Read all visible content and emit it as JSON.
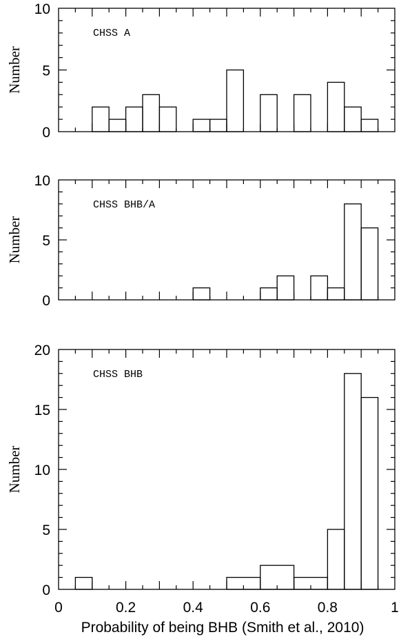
{
  "chart_data": [
    {
      "type": "bar",
      "label": "CHSS A",
      "ylabel": "Number",
      "xlim": [
        0,
        1
      ],
      "ylim": [
        0,
        10
      ],
      "yticks": [
        0,
        5,
        10
      ],
      "bin_width": 0.05,
      "bins_start": [
        0.1,
        0.15,
        0.2,
        0.25,
        0.3,
        0.4,
        0.45,
        0.5,
        0.6,
        0.7,
        0.8,
        0.85,
        0.9
      ],
      "values": [
        2,
        1,
        2,
        3,
        2,
        1,
        1,
        5,
        3,
        3,
        4,
        2,
        1
      ]
    },
    {
      "type": "bar",
      "label": "CHSS BHB/A",
      "ylabel": "Number",
      "xlim": [
        0,
        1
      ],
      "ylim": [
        0,
        10
      ],
      "yticks": [
        0,
        5,
        10
      ],
      "bin_width": 0.05,
      "bins_start": [
        0.4,
        0.6,
        0.65,
        0.75,
        0.8,
        0.85,
        0.9
      ],
      "values": [
        1,
        1,
        2,
        2,
        1,
        8,
        6
      ]
    },
    {
      "type": "bar",
      "label": "CHSS BHB",
      "ylabel": "Number",
      "xlabel": "Probability of being BHB (Smith et al., 2010)",
      "xlim": [
        0,
        1
      ],
      "ylim": [
        0,
        20
      ],
      "yticks": [
        0,
        5,
        10,
        15,
        20
      ],
      "xticks": [
        "0",
        "0.2",
        "0.4",
        "0.6",
        "0.8",
        "1"
      ],
      "bin_width": 0.05,
      "bins_start": [
        0.05,
        0.5,
        0.6,
        0.7,
        0.8,
        0.85,
        0.9
      ],
      "bin_widths": [
        0.05,
        0.1,
        0.1,
        0.1,
        0.05,
        0.05,
        0.05
      ],
      "values": [
        1,
        1,
        2,
        1,
        5,
        18,
        16
      ]
    }
  ]
}
